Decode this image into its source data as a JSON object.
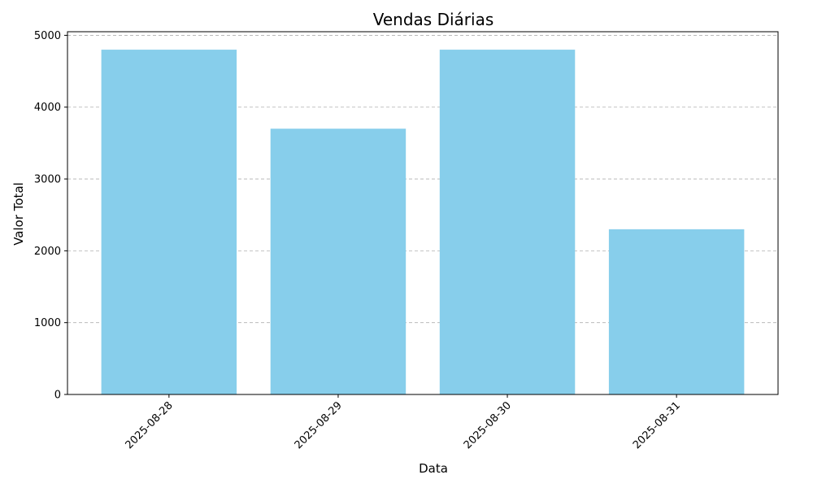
{
  "chart_data": {
    "type": "bar",
    "title": "Vendas Diárias",
    "xlabel": "Data",
    "ylabel": "Valor Total",
    "categories": [
      "2025-08-28",
      "2025-08-29",
      "2025-08-30",
      "2025-08-31"
    ],
    "values": [
      4800,
      3700,
      4800,
      2300
    ],
    "ylim": [
      0,
      5050
    ],
    "yticks": [
      0,
      1000,
      2000,
      3000,
      4000,
      5000
    ],
    "grid": "y-dashed",
    "bar_color": "#87ceeb",
    "xtick_rotation": 45
  }
}
